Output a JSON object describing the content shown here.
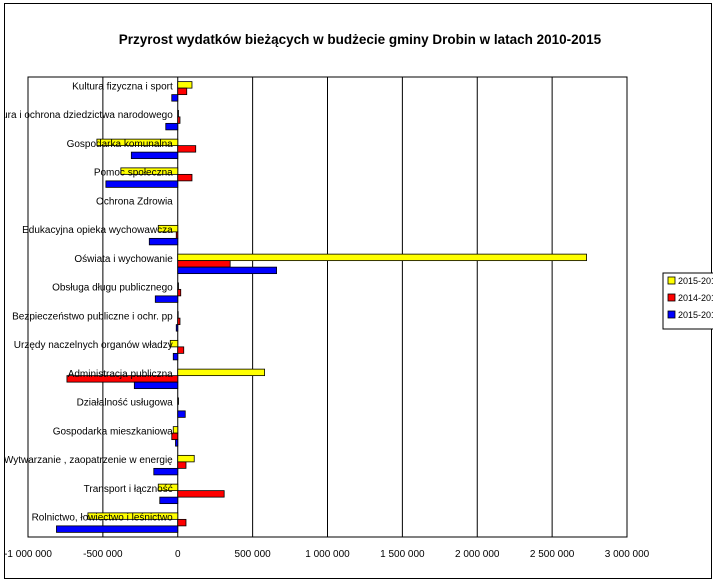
{
  "chart_data": {
    "type": "bar",
    "orientation": "horizontal",
    "title": "Przyrost wydatków bieżących w budżecie gminy Drobin w latach 2010-2015",
    "xlabel": "",
    "ylabel": "",
    "xlim": [
      -1000000,
      3000000
    ],
    "x_ticks": [
      -1000000,
      -500000,
      0,
      500000,
      1000000,
      1500000,
      2000000,
      2500000,
      3000000
    ],
    "x_tick_labels": [
      "-1 000 000",
      "-500 000",
      "0",
      "500 000",
      "1 000 000",
      "1 500 000",
      "2 000 000",
      "2 500 000",
      "3 000 000"
    ],
    "grid": "vertical",
    "legend_position": "right",
    "categories": [
      "Kultura fizyczna i sport",
      "Kultura i ochrona dziedzictwa narodowego",
      "Gospodarka komunalna",
      "Pomoc społeczna",
      "Ochrona Zdrowia",
      "Edukacyjna opieka wychowawcza",
      "Oświata i wychowanie",
      "Obsługa długu publicznego",
      "Bezpieczeństwo publiczne i ochr. pp",
      "Urzędy naczelnych organów władzy",
      "Administracja publiczna",
      "Działalność usługowa",
      "Gospodarka mieszkaniowa",
      "Wytwarzanie , zaopatrzenie w energię",
      "Transport i łączność",
      "Rolnictwo, łowiectwo i leśnictwo"
    ],
    "series": [
      {
        "name": "2015-2010",
        "color": "#FFFF00",
        "values": [
          95000,
          5000,
          -540000,
          -380000,
          0,
          -130000,
          2730000,
          5000,
          3000,
          -50000,
          580000,
          5000,
          -30000,
          110000,
          -130000,
          -600000
        ]
      },
      {
        "name": "2014-2013",
        "color": "#FF0000",
        "values": [
          60000,
          15000,
          120000,
          95000,
          0,
          -10000,
          350000,
          20000,
          15000,
          40000,
          -740000,
          0,
          -40000,
          55000,
          310000,
          55000
        ]
      },
      {
        "name": "2015-2014",
        "color": "#0000FF",
        "values": [
          -40000,
          -80000,
          -310000,
          -480000,
          0,
          -190000,
          660000,
          -150000,
          -10000,
          -30000,
          -290000,
          50000,
          -15000,
          -160000,
          -120000,
          -810000
        ]
      }
    ]
  }
}
